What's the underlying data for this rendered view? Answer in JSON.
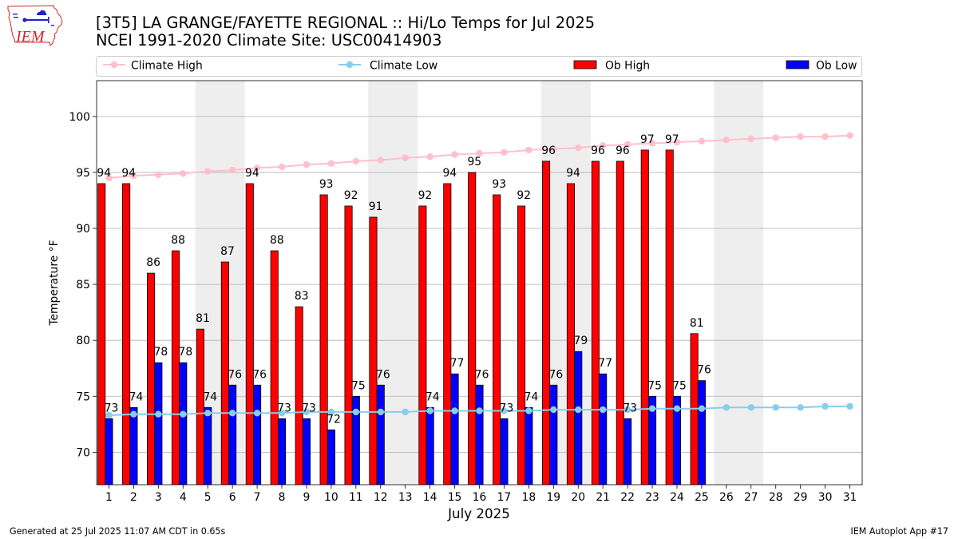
{
  "logo": {
    "text": "IEM"
  },
  "footer": {
    "generated": "Generated at 25 Jul 2025 11:07 AM CDT in 0.65s",
    "app": "IEM Autoplot App #17"
  },
  "colors": {
    "shading": "#eeeeee",
    "grid": "#b0b0b0",
    "logo_red": "#cc2929",
    "logo_blue": "#1f1fd0"
  },
  "chart_data": {
    "type": "bar",
    "title": "[3T5] LA GRANGE/FAYETTE REGIONAL :: Hi/Lo Temps for Jul 2025",
    "subtitle": "NCEI 1991-2020 Climate Site: USC00414903",
    "xlabel": "July 2025",
    "ylabel": "Temperature °F",
    "x": [
      1,
      2,
      3,
      4,
      5,
      6,
      7,
      8,
      9,
      10,
      11,
      12,
      13,
      14,
      15,
      16,
      17,
      18,
      19,
      20,
      21,
      22,
      23,
      24,
      25,
      26,
      27,
      28,
      29,
      30,
      31
    ],
    "xlim": [
      0.5,
      31.5
    ],
    "ylim": [
      67.1,
      103.2
    ],
    "yticks": [
      70,
      75,
      80,
      85,
      90,
      95,
      100
    ],
    "grid": true,
    "legend": "top",
    "shaded_spans": [
      [
        4.5,
        6.5
      ],
      [
        11.5,
        13.5
      ],
      [
        18.5,
        20.5
      ],
      [
        25.5,
        27.5
      ]
    ],
    "series": [
      {
        "name": "Climate High",
        "type": "line",
        "color": "#ffc0cb",
        "values": [
          94.5,
          94.7,
          94.8,
          94.9,
          95.1,
          95.2,
          95.4,
          95.5,
          95.7,
          95.8,
          96.0,
          96.1,
          96.3,
          96.4,
          96.6,
          96.7,
          96.8,
          97.0,
          97.1,
          97.2,
          97.4,
          97.5,
          97.6,
          97.7,
          97.8,
          97.9,
          98.0,
          98.1,
          98.2,
          98.2,
          98.3
        ]
      },
      {
        "name": "Climate Low",
        "type": "line",
        "color": "#87ceeb",
        "values": [
          73.3,
          73.4,
          73.4,
          73.4,
          73.5,
          73.5,
          73.5,
          73.5,
          73.6,
          73.6,
          73.6,
          73.6,
          73.6,
          73.7,
          73.7,
          73.7,
          73.7,
          73.7,
          73.8,
          73.8,
          73.8,
          73.8,
          73.9,
          73.9,
          73.9,
          74.0,
          74.0,
          74.0,
          74.0,
          74.1,
          74.1
        ]
      },
      {
        "name": "Ob High",
        "type": "bar",
        "color": "#ff0000",
        "values": [
          94,
          94,
          86,
          88,
          81,
          87,
          94,
          88,
          83,
          93,
          92,
          91,
          null,
          92,
          94,
          95,
          93,
          92,
          96,
          94,
          96,
          96,
          97,
          97,
          80.6,
          null,
          null,
          null,
          null,
          null,
          null
        ]
      },
      {
        "name": "Ob Low",
        "type": "bar",
        "color": "#0000ff",
        "values": [
          73,
          74,
          78,
          78,
          74,
          76,
          76,
          73,
          73,
          72,
          75,
          76,
          null,
          74,
          77,
          76,
          73,
          74,
          76,
          79,
          77,
          73,
          75,
          75,
          76.4,
          null,
          null,
          null,
          null,
          null,
          null
        ]
      }
    ]
  }
}
